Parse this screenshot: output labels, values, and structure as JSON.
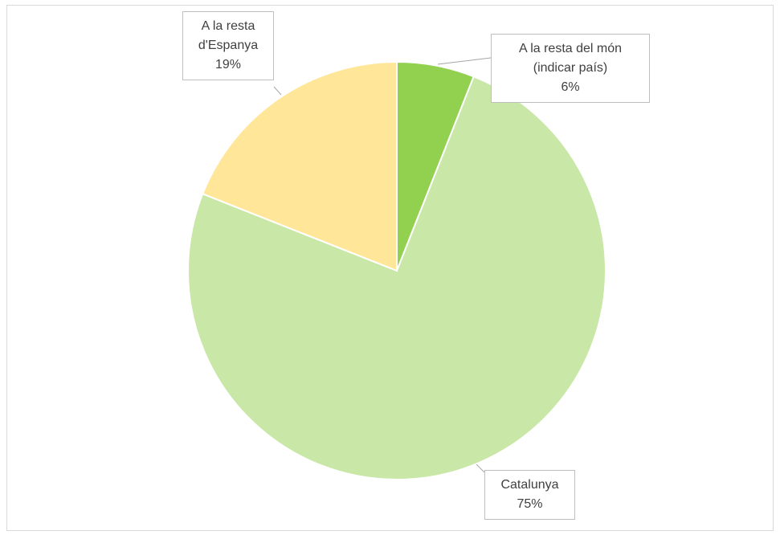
{
  "chart_data": {
    "type": "pie",
    "categories": [
      "A la resta del món (indicar país)",
      "Catalunya",
      "A la resta d'Espanya"
    ],
    "values": [
      6,
      75,
      19
    ],
    "value_labels": [
      "6%",
      "75%",
      "19%"
    ],
    "colors": [
      "#92d050",
      "#c9e7a7",
      "#ffe699"
    ]
  }
}
